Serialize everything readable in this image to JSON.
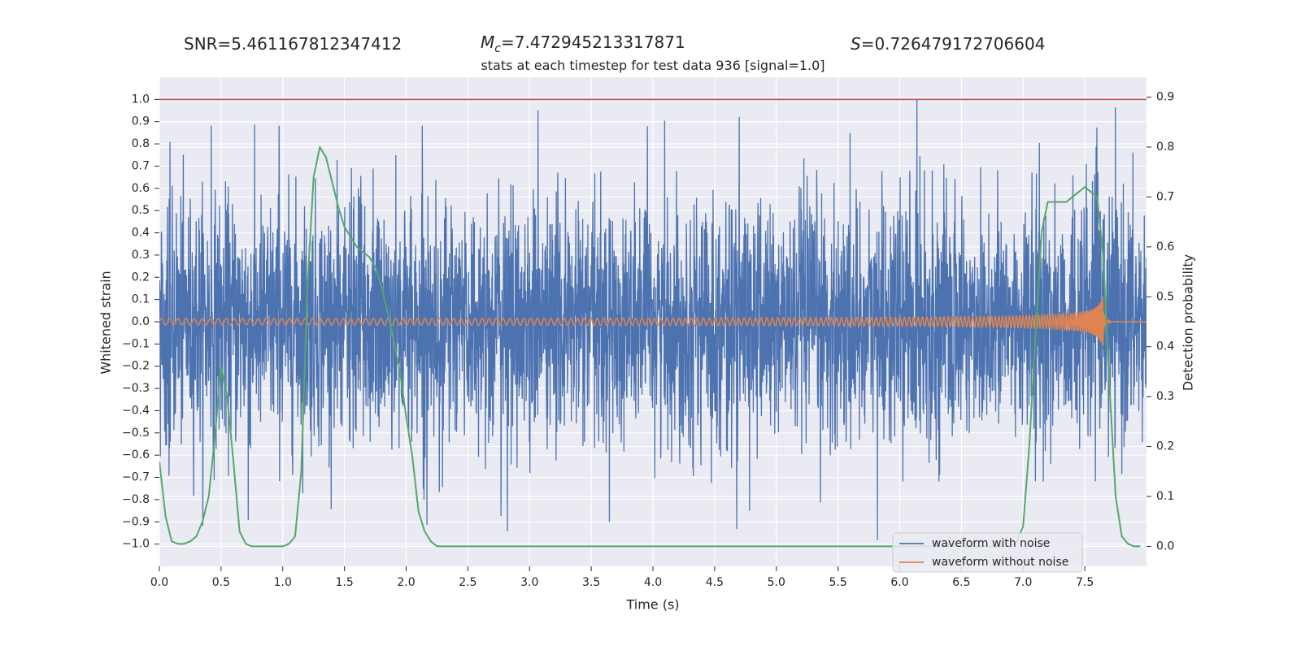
{
  "header": {
    "snr_label": "SNR=5.461167812347412",
    "mc_symbol": "M",
    "mc_sub": "c",
    "mc_value": "=7.472945213317871",
    "s_symbol": "S",
    "s_value": "=0.726479172706604"
  },
  "colors": {
    "background": "#eaeaf2",
    "grid": "#ffffff",
    "noisy": "#4c72b0",
    "clean": "#dd8452",
    "probability": "#55a868",
    "threshold": "#c44e52"
  },
  "chart_data": {
    "type": "line",
    "title": "stats at each timestep for test data 936 [signal=1.0]",
    "xlabel": "Time (s)",
    "ylabel": "Whitened strain",
    "y2label": "Detection probability",
    "xlim": [
      0,
      8
    ],
    "ylim": [
      -1.1,
      1.1
    ],
    "y2lim": [
      -0.04,
      0.94
    ],
    "xticks": [
      "0.0",
      "0.5",
      "1.0",
      "1.5",
      "2.0",
      "2.5",
      "3.0",
      "3.5",
      "4.0",
      "4.5",
      "5.0",
      "5.5",
      "6.0",
      "6.5",
      "7.0",
      "7.5"
    ],
    "yticks": [
      "1.0",
      "0.9",
      "0.8",
      "0.7",
      "0.6",
      "0.5",
      "0.4",
      "0.3",
      "0.2",
      "0.1",
      "0.0",
      "−0.1",
      "−0.2",
      "−0.3",
      "−0.4",
      "−0.5",
      "−0.6",
      "−0.7",
      "−0.8",
      "−0.9",
      "−1.0"
    ],
    "y2ticks": [
      "0.9",
      "0.8",
      "0.7",
      "0.6",
      "0.5",
      "0.4",
      "0.3",
      "0.2",
      "0.1",
      "0.0"
    ],
    "legend_position": "bottom-right",
    "threshold": 1.0,
    "series": [
      {
        "name": "waveform with noise",
        "kind": "noise",
        "min": -1.0,
        "max": 1.0
      },
      {
        "name": "waveform without noise",
        "kind": "chirp",
        "amplitude_start": 0.01,
        "amplitude_peak": 0.13,
        "merger_time": 7.65,
        "cycles_approx": 120
      },
      {
        "name": "detection probability",
        "axis": "right",
        "x": [
          0.0,
          0.05,
          0.1,
          0.15,
          0.2,
          0.25,
          0.3,
          0.35,
          0.4,
          0.45,
          0.5,
          0.55,
          0.6,
          0.65,
          0.7,
          0.75,
          0.8,
          0.85,
          0.9,
          0.95,
          1.0,
          1.05,
          1.1,
          1.15,
          1.2,
          1.25,
          1.3,
          1.35,
          1.4,
          1.45,
          1.5,
          1.55,
          1.6,
          1.65,
          1.7,
          1.75,
          1.8,
          1.85,
          1.9,
          1.95,
          2.0,
          2.05,
          2.1,
          2.15,
          2.2,
          2.25,
          2.3,
          2.5,
          3.0,
          3.5,
          4.0,
          4.5,
          5.0,
          5.5,
          6.0,
          6.5,
          6.8,
          6.9,
          6.95,
          7.0,
          7.05,
          7.1,
          7.15,
          7.2,
          7.25,
          7.3,
          7.35,
          7.4,
          7.45,
          7.5,
          7.55,
          7.6,
          7.65,
          7.7,
          7.75,
          7.8,
          7.85,
          7.9,
          7.95
        ],
        "values": [
          0.17,
          0.06,
          0.01,
          0.005,
          0.005,
          0.01,
          0.02,
          0.05,
          0.1,
          0.22,
          0.36,
          0.3,
          0.17,
          0.03,
          0.005,
          0.0,
          0.0,
          0.0,
          0.0,
          0.0,
          0.0,
          0.005,
          0.02,
          0.15,
          0.52,
          0.74,
          0.8,
          0.78,
          0.73,
          0.68,
          0.64,
          0.62,
          0.6,
          0.59,
          0.58,
          0.56,
          0.52,
          0.47,
          0.41,
          0.35,
          0.26,
          0.18,
          0.07,
          0.03,
          0.01,
          0.0,
          0.0,
          0.0,
          0.0,
          0.0,
          0.0,
          0.0,
          0.0,
          0.0,
          0.0,
          0.0,
          0.0,
          0.0,
          0.01,
          0.04,
          0.2,
          0.42,
          0.63,
          0.69,
          0.69,
          0.69,
          0.69,
          0.7,
          0.71,
          0.72,
          0.71,
          0.7,
          0.58,
          0.32,
          0.1,
          0.02,
          0.005,
          0.0,
          0.0
        ]
      }
    ],
    "noise_spikes": [
      {
        "x": 0.42,
        "y": 0.88
      },
      {
        "x": 0.97,
        "y": 0.88
      },
      {
        "x": 2.13,
        "y": 0.88
      },
      {
        "x": 6.14,
        "y": 1.0
      },
      {
        "x": 5.82,
        "y": -0.98
      },
      {
        "x": 2.82,
        "y": -0.94
      },
      {
        "x": 0.72,
        "y": -0.89
      },
      {
        "x": 4.68,
        "y": -0.93
      }
    ]
  }
}
